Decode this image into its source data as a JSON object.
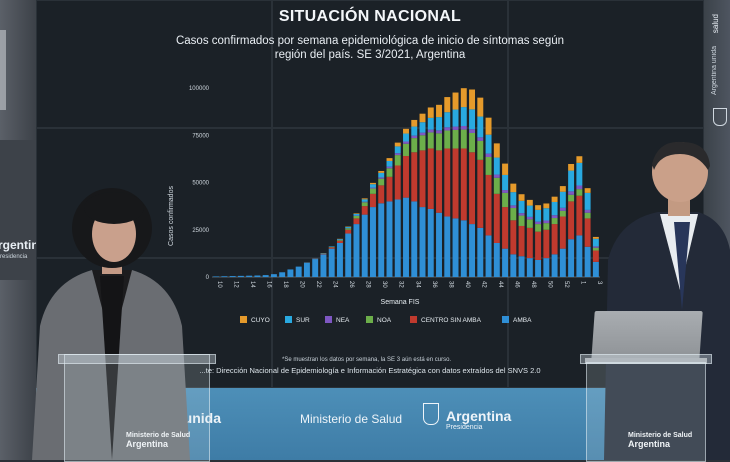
{
  "chart": {
    "title": "SITUACIÓN NACIONAL",
    "subtitle": "Casos confirmados por semana epidemiológica de inicio de síntomas según región del país. SE 3/2021, Argentina",
    "footnote": "*Se muestran los datos por semana, la SE 3 aún está en curso.",
    "source": "...te: Dirección Nacional de Epidemiología e Información Estratégica con datos extraídos del SNVS 2.0",
    "ylabel": "Casos confirmados",
    "xlabel": "Semana FIS",
    "yticks": [
      "0",
      "25000",
      "50000",
      "75000",
      "100000"
    ]
  },
  "chart_data": {
    "type": "bar",
    "stacked": true,
    "title": "SITUACIÓN NACIONAL",
    "ylabel": "Casos confirmados",
    "xlabel": "Semana FIS",
    "ylim": [
      0,
      100000
    ],
    "categories": [
      "10",
      "11",
      "12",
      "13",
      "14",
      "15",
      "16",
      "17",
      "18",
      "19",
      "20",
      "21",
      "22",
      "23",
      "24",
      "25",
      "26",
      "27",
      "28",
      "29",
      "30",
      "31",
      "32",
      "33",
      "34",
      "35",
      "36",
      "37",
      "38",
      "39",
      "40",
      "41",
      "42",
      "43",
      "44",
      "45",
      "46",
      "47",
      "48",
      "49",
      "50",
      "51",
      "52",
      "53",
      "1",
      "2",
      "3"
    ],
    "tick_labels": [
      "10",
      "12",
      "14",
      "16",
      "18",
      "20",
      "22",
      "24",
      "26",
      "28",
      "30",
      "32",
      "34",
      "36",
      "38",
      "40",
      "42",
      "44",
      "46",
      "48",
      "50",
      "52",
      "1",
      "3"
    ],
    "series": [
      {
        "name": "AMBA",
        "color": "#2f8fd6",
        "values": [
          300,
          400,
          500,
          600,
          700,
          800,
          1000,
          1500,
          2500,
          4000,
          5500,
          7500,
          9500,
          12000,
          15000,
          18000,
          23000,
          28000,
          33000,
          37000,
          39000,
          40000,
          41000,
          42000,
          40000,
          37000,
          36000,
          34000,
          32000,
          31000,
          30000,
          28000,
          26000,
          22000,
          18000,
          15000,
          12000,
          11000,
          10000,
          9000,
          10000,
          12000,
          15000,
          20000,
          22000,
          16000,
          8000
        ]
      },
      {
        "name": "CENTRO SIN AMBA",
        "color": "#c03a2e",
        "values": [
          0,
          0,
          0,
          0,
          0,
          0,
          0,
          0,
          0,
          0,
          0,
          100,
          200,
          400,
          700,
          1200,
          2000,
          3000,
          4500,
          7000,
          9500,
          13000,
          18000,
          22000,
          26000,
          30000,
          32000,
          33000,
          36000,
          37000,
          38000,
          38000,
          36000,
          32000,
          26000,
          22000,
          18000,
          16000,
          16000,
          15000,
          15000,
          16000,
          17000,
          20000,
          21000,
          15000,
          6000
        ]
      },
      {
        "name": "NOA",
        "color": "#6cae4a",
        "values": [
          0,
          0,
          0,
          0,
          0,
          0,
          0,
          0,
          0,
          0,
          0,
          0,
          0,
          100,
          200,
          400,
          800,
          1300,
          2000,
          2800,
          3500,
          4500,
          5500,
          6500,
          7500,
          8000,
          8500,
          9000,
          9500,
          9800,
          10000,
          10200,
          10000,
          9500,
          8500,
          7500,
          6500,
          5500,
          4500,
          4000,
          3500,
          3200,
          3000,
          3500,
          3500,
          3000,
          1500
        ]
      },
      {
        "name": "NEA",
        "color": "#7e57c2",
        "values": [
          0,
          0,
          0,
          0,
          0,
          0,
          0,
          0,
          0,
          0,
          0,
          0,
          0,
          0,
          0,
          100,
          150,
          200,
          300,
          500,
          700,
          900,
          1000,
          1200,
          1300,
          1400,
          1500,
          1600,
          1700,
          1800,
          1900,
          2000,
          1900,
          1800,
          1700,
          1500,
          1400,
          1300,
          1300,
          1300,
          1400,
          1500,
          1600,
          1800,
          1900,
          1500,
          700
        ]
      },
      {
        "name": "SUR",
        "color": "#29a9e0",
        "values": [
          0,
          0,
          0,
          0,
          0,
          0,
          0,
          0,
          0,
          0,
          0,
          100,
          150,
          200,
          300,
          400,
          600,
          900,
          1300,
          1800,
          2400,
          3000,
          3600,
          4200,
          4800,
          5500,
          6200,
          7000,
          8000,
          9000,
          10000,
          10500,
          11000,
          10000,
          9000,
          8000,
          7000,
          6500,
          6000,
          6200,
          6500,
          7000,
          8500,
          11000,
          12000,
          9000,
          4000
        ]
      },
      {
        "name": "CUYO",
        "color": "#e59a2b",
        "values": [
          0,
          0,
          0,
          0,
          0,
          0,
          0,
          0,
          0,
          0,
          0,
          0,
          0,
          0,
          0,
          100,
          200,
          300,
          500,
          700,
          1000,
          1500,
          2000,
          2500,
          3500,
          4500,
          5500,
          6500,
          8000,
          9000,
          10000,
          10500,
          10000,
          9000,
          7500,
          6000,
          4500,
          3500,
          3000,
          2500,
          2500,
          2800,
          3000,
          3500,
          3500,
          2500,
          1000
        ]
      }
    ],
    "legend": [
      "CUYO",
      "SUR",
      "NEA",
      "NOA",
      "CENTRO SIN AMBA",
      "AMBA"
    ],
    "legend_position": "bottom"
  },
  "venue": {
    "left_wall_brand": "rgentina",
    "left_wall_sub": "residencia",
    "right_wall_top": "salud",
    "right_wall_mid": "Argentina unida",
    "band_left": "a unida",
    "band_ministry": "Ministerio de Salud",
    "band_brand": "Argentina",
    "band_brand_sub": "Presidencia",
    "podium_left_line1": "Ministerio de Salud",
    "podium_left_line2": "Argentina",
    "podium_right_line1": "Ministerio de Salud",
    "podium_right_line2": "Argentina"
  }
}
